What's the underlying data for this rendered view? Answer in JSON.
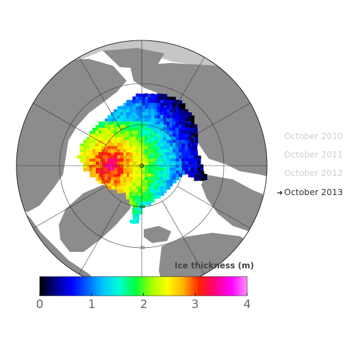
{
  "legend": {
    "title": "Ice thickness (m)",
    "ticks": [
      "0",
      "1",
      "2",
      "3",
      "4"
    ],
    "range": [
      0,
      4
    ],
    "units": "m"
  },
  "timeline": {
    "items": [
      {
        "label": "October 2010",
        "active": false
      },
      {
        "label": "October 2011",
        "active": false
      },
      {
        "label": "October 2012",
        "active": false
      },
      {
        "label": "October 2013",
        "active": true
      }
    ],
    "active_marker": "➜"
  },
  "map": {
    "latitude_labels": [
      "80",
      "70"
    ],
    "projection": "north polar stereographic",
    "colors": {
      "ocean": "#ffffff",
      "land": "#8c8c8c",
      "outside": "#c6c6c6",
      "grid": "#333333"
    }
  },
  "colormap": [
    "#000000",
    "#00008c",
    "#0000ff",
    "#0064ff",
    "#00c8ff",
    "#00ffd0",
    "#00ff40",
    "#a0ff00",
    "#ffff00",
    "#ffb000",
    "#ff2000",
    "#ff0080",
    "#ff00ff",
    "#ff90ff"
  ]
}
